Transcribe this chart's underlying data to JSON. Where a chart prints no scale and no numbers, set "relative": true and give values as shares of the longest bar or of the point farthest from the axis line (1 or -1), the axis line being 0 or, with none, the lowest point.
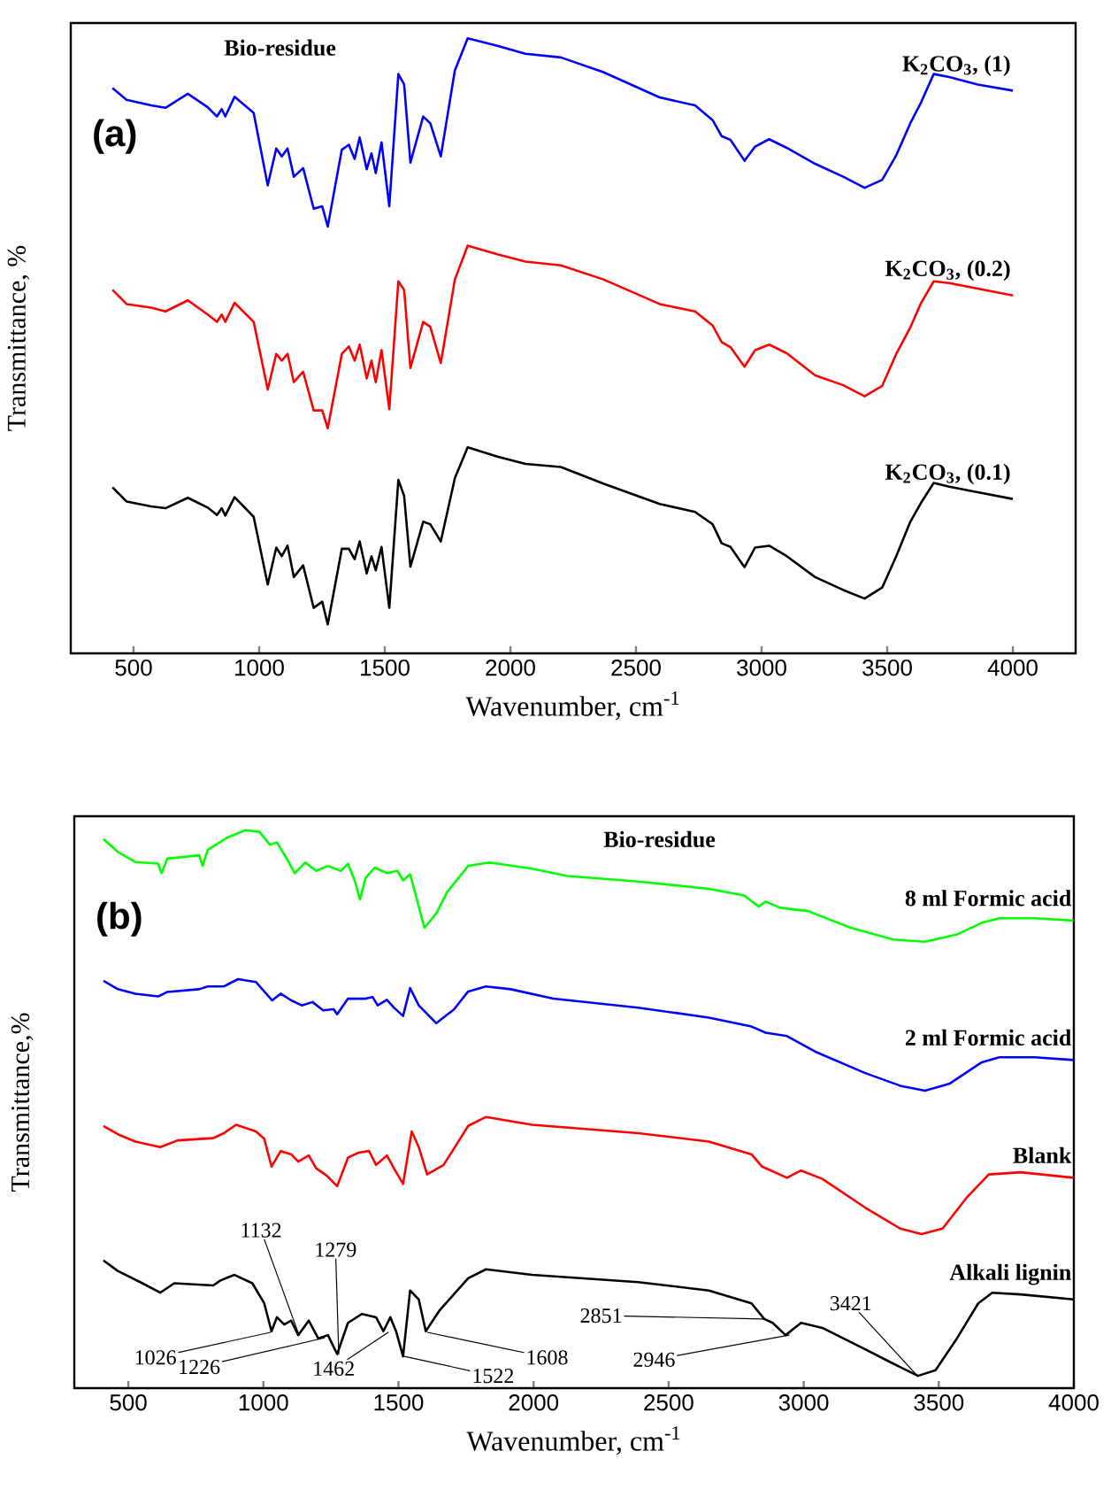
{
  "chart_data": [
    {
      "type": "line",
      "title": "(a)",
      "xlabel": "Wavenumber, cm$^{-1}$",
      "ylabel": "Transmittance, %",
      "relative": true,
      "tick_labels": "x",
      "xlim": [
        250,
        4250
      ],
      "xticks": [
        500,
        1000,
        1500,
        2000,
        2500,
        3000,
        3500,
        4000
      ],
      "annotations": [
        "Bio-residue"
      ],
      "series": [
        {
          "name": "K$_{2}$CO$_{3}$, (1)",
          "color": "#0000ff",
          "x": [
            416,
            472,
            570,
            627,
            716,
            795,
            832,
            851,
            865,
            902,
            978,
            1034,
            1068,
            1090,
            1113,
            1138,
            1175,
            1217,
            1251,
            1273,
            1329,
            1357,
            1380,
            1400,
            1428,
            1447,
            1464,
            1487,
            1518,
            1554,
            1577,
            1602,
            1653,
            1681,
            1723,
            1779,
            1830,
            1948,
            2060,
            2201,
            2370,
            2594,
            2735,
            2805,
            2841,
            2876,
            2932,
            2974,
            3030,
            3100,
            3213,
            3325,
            3410,
            3480,
            3536,
            3592,
            3635,
            3685,
            3747,
            3860,
            4000
          ],
          "values": [
            0.919,
            0.9,
            0.891,
            0.887,
            0.91,
            0.888,
            0.873,
            0.885,
            0.873,
            0.905,
            0.879,
            0.761,
            0.821,
            0.808,
            0.821,
            0.775,
            0.789,
            0.723,
            0.727,
            0.694,
            0.819,
            0.827,
            0.804,
            0.839,
            0.787,
            0.813,
            0.781,
            0.831,
            0.727,
            0.942,
            0.925,
            0.798,
            0.873,
            0.862,
            0.808,
            0.948,
            1.0,
            0.988,
            0.975,
            0.969,
            0.945,
            0.904,
            0.891,
            0.867,
            0.841,
            0.835,
            0.801,
            0.824,
            0.836,
            0.822,
            0.796,
            0.775,
            0.757,
            0.77,
            0.81,
            0.862,
            0.896,
            0.942,
            0.937,
            0.925,
            0.915
          ]
        },
        {
          "name": "K$_{2}$CO$_{3}$, (0.2)",
          "color": "#ff0000",
          "x": [
            416,
            472,
            570,
            627,
            716,
            795,
            832,
            851,
            865,
            902,
            978,
            1034,
            1068,
            1090,
            1113,
            1138,
            1175,
            1217,
            1251,
            1273,
            1329,
            1357,
            1380,
            1400,
            1428,
            1447,
            1464,
            1487,
            1518,
            1554,
            1577,
            1602,
            1653,
            1681,
            1723,
            1779,
            1830,
            1948,
            2060,
            2201,
            2370,
            2594,
            2735,
            2805,
            2841,
            2876,
            2932,
            2974,
            3030,
            3100,
            3213,
            3325,
            3410,
            3480,
            3536,
            3592,
            3635,
            3685,
            3747,
            3860,
            4000
          ],
          "values": [
            0.591,
            0.568,
            0.562,
            0.556,
            0.574,
            0.551,
            0.539,
            0.551,
            0.539,
            0.57,
            0.539,
            0.429,
            0.487,
            0.476,
            0.487,
            0.441,
            0.458,
            0.395,
            0.395,
            0.366,
            0.487,
            0.499,
            0.476,
            0.502,
            0.447,
            0.476,
            0.441,
            0.493,
            0.397,
            0.605,
            0.591,
            0.464,
            0.539,
            0.531,
            0.472,
            0.608,
            0.663,
            0.649,
            0.637,
            0.631,
            0.608,
            0.568,
            0.556,
            0.533,
            0.506,
            0.498,
            0.466,
            0.493,
            0.502,
            0.488,
            0.452,
            0.436,
            0.418,
            0.435,
            0.487,
            0.53,
            0.57,
            0.605,
            0.602,
            0.593,
            0.582
          ]
        },
        {
          "name": "K$_{2}$CO$_{3}$, (0.1)",
          "color": "#000000",
          "x": [
            416,
            472,
            570,
            627,
            716,
            795,
            832,
            851,
            865,
            902,
            978,
            1034,
            1068,
            1090,
            1113,
            1138,
            1175,
            1217,
            1251,
            1273,
            1329,
            1357,
            1380,
            1400,
            1428,
            1447,
            1464,
            1487,
            1518,
            1554,
            1577,
            1602,
            1653,
            1681,
            1723,
            1779,
            1830,
            1948,
            2060,
            2201,
            2370,
            2594,
            2735,
            2805,
            2841,
            2876,
            2932,
            2974,
            3030,
            3100,
            3213,
            3325,
            3410,
            3480,
            3536,
            3592,
            3635,
            3685,
            3747,
            3860,
            4000
          ],
          "values": [
            0.27,
            0.247,
            0.239,
            0.236,
            0.253,
            0.237,
            0.225,
            0.236,
            0.224,
            0.254,
            0.222,
            0.112,
            0.172,
            0.158,
            0.175,
            0.124,
            0.143,
            0.074,
            0.084,
            0.047,
            0.17,
            0.17,
            0.153,
            0.182,
            0.13,
            0.158,
            0.135,
            0.173,
            0.074,
            0.282,
            0.256,
            0.141,
            0.214,
            0.21,
            0.182,
            0.285,
            0.335,
            0.32,
            0.308,
            0.303,
            0.276,
            0.243,
            0.23,
            0.21,
            0.179,
            0.173,
            0.14,
            0.172,
            0.175,
            0.158,
            0.124,
            0.103,
            0.089,
            0.107,
            0.158,
            0.214,
            0.245,
            0.277,
            0.271,
            0.262,
            0.251
          ]
        }
      ]
    },
    {
      "type": "line",
      "title": "(b)",
      "xlabel": "Wavenumber, cm$^{-1}$",
      "ylabel": "Transmittance,%",
      "relative": true,
      "tick_labels": "x",
      "xlim": [
        300,
        4000
      ],
      "xticks": [
        500,
        1000,
        1500,
        2000,
        2500,
        3000,
        3500,
        4000
      ],
      "annotations": [
        "Bio-residue",
        {
          "text": "1026",
          "x": 1026,
          "y": 0.1
        },
        {
          "text": "1132",
          "x": 1132,
          "y": 0.095
        },
        {
          "text": "1279",
          "x": 1279,
          "y": 0.061
        },
        {
          "text": "1226",
          "x": 1226,
          "y": 0.09
        },
        {
          "text": "1462",
          "x": 1462,
          "y": 0.1
        },
        {
          "text": "1522",
          "x": 1522,
          "y": 0.057
        },
        {
          "text": "1608",
          "x": 1608,
          "y": 0.1
        },
        {
          "text": "2851",
          "x": 2851,
          "y": 0.124
        },
        {
          "text": "2946",
          "x": 2946,
          "y": 0.095
        },
        {
          "text": "3421",
          "x": 3421,
          "y": 0.022
        }
      ],
      "series": [
        {
          "name": "8 ml Formic acid",
          "color": "#00ff00",
          "x": [
            408,
            461,
            526,
            610,
            623,
            644,
            762,
            775,
            794,
            867,
            933,
            985,
            1024,
            1050,
            1090,
            1116,
            1155,
            1195,
            1239,
            1286,
            1313,
            1339,
            1357,
            1378,
            1412,
            1457,
            1496,
            1517,
            1543,
            1596,
            1640,
            1680,
            1758,
            1837,
            1994,
            2125,
            2387,
            2649,
            2780,
            2833,
            2859,
            2912,
            3016,
            3174,
            3331,
            3449,
            3567,
            3659,
            3724,
            3855,
            3999
          ],
          "values": [
            0.984,
            0.961,
            0.943,
            0.94,
            0.923,
            0.949,
            0.955,
            0.936,
            0.965,
            0.987,
            1.0,
            0.997,
            0.974,
            0.978,
            0.946,
            0.923,
            0.942,
            0.927,
            0.936,
            0.927,
            0.94,
            0.908,
            0.876,
            0.914,
            0.933,
            0.923,
            0.927,
            0.91,
            0.921,
            0.825,
            0.851,
            0.889,
            0.936,
            0.942,
            0.931,
            0.918,
            0.908,
            0.895,
            0.883,
            0.863,
            0.872,
            0.861,
            0.855,
            0.825,
            0.804,
            0.8,
            0.813,
            0.834,
            0.842,
            0.842,
            0.838
          ]
        },
        {
          "name": "2 ml Formic acid",
          "color": "#0000ff",
          "x": [
            408,
            461,
            526,
            610,
            644,
            762,
            794,
            854,
            906,
            972,
            1032,
            1064,
            1103,
            1142,
            1182,
            1221,
            1260,
            1273,
            1313,
            1378,
            1404,
            1423,
            1457,
            1483,
            1517,
            1543,
            1575,
            1640,
            1706,
            1758,
            1824,
            1915,
            2073,
            2387,
            2649,
            2807,
            2859,
            2938,
            3043,
            3226,
            3357,
            3449,
            3541,
            3659,
            3724,
            3855,
            3999
          ],
          "values": [
            0.73,
            0.715,
            0.707,
            0.702,
            0.71,
            0.715,
            0.72,
            0.72,
            0.733,
            0.728,
            0.695,
            0.707,
            0.695,
            0.686,
            0.692,
            0.677,
            0.679,
            0.67,
            0.698,
            0.698,
            0.701,
            0.686,
            0.696,
            0.682,
            0.667,
            0.717,
            0.686,
            0.654,
            0.679,
            0.711,
            0.72,
            0.715,
            0.698,
            0.682,
            0.664,
            0.648,
            0.637,
            0.631,
            0.603,
            0.565,
            0.542,
            0.533,
            0.546,
            0.584,
            0.593,
            0.593,
            0.588
          ]
        },
        {
          "name": "Blank",
          "color": "#ff0000",
          "x": [
            408,
            461,
            526,
            618,
            683,
            814,
            854,
            899,
            972,
            1003,
            1030,
            1064,
            1103,
            1129,
            1168,
            1195,
            1234,
            1273,
            1313,
            1352,
            1391,
            1417,
            1457,
            1483,
            1517,
            1549,
            1575,
            1606,
            1667,
            1758,
            1824,
            1994,
            2387,
            2649,
            2807,
            2846,
            2938,
            2990,
            3069,
            3226,
            3357,
            3436,
            3514,
            3606,
            3685,
            3803,
            3999
          ],
          "values": [
            0.47,
            0.455,
            0.442,
            0.432,
            0.444,
            0.448,
            0.457,
            0.472,
            0.46,
            0.447,
            0.397,
            0.425,
            0.419,
            0.406,
            0.417,
            0.394,
            0.381,
            0.362,
            0.413,
            0.422,
            0.425,
            0.4,
            0.417,
            0.394,
            0.366,
            0.46,
            0.432,
            0.383,
            0.4,
            0.47,
            0.486,
            0.472,
            0.457,
            0.442,
            0.419,
            0.397,
            0.377,
            0.39,
            0.375,
            0.324,
            0.286,
            0.276,
            0.286,
            0.343,
            0.383,
            0.387,
            0.377
          ]
        },
        {
          "name": "Alkali lignin",
          "color": "#000000",
          "x": [
            408,
            461,
            552,
            618,
            670,
            814,
            841,
            893,
            959,
            1003,
            1030,
            1050,
            1077,
            1103,
            1129,
            1168,
            1203,
            1239,
            1273,
            1313,
            1365,
            1417,
            1444,
            1470,
            1491,
            1517,
            1543,
            1575,
            1601,
            1653,
            1758,
            1824,
            1994,
            2387,
            2649,
            2807,
            2854,
            2885,
            2933,
            2990,
            3069,
            3226,
            3331,
            3423,
            3488,
            3567,
            3646,
            3698,
            3803,
            3999
          ],
          "values": [
            0.229,
            0.21,
            0.188,
            0.171,
            0.188,
            0.184,
            0.193,
            0.203,
            0.188,
            0.152,
            0.102,
            0.127,
            0.114,
            0.121,
            0.095,
            0.121,
            0.089,
            0.095,
            0.061,
            0.117,
            0.133,
            0.127,
            0.102,
            0.127,
            0.102,
            0.057,
            0.175,
            0.159,
            0.102,
            0.14,
            0.197,
            0.213,
            0.203,
            0.19,
            0.175,
            0.152,
            0.124,
            0.117,
            0.095,
            0.117,
            0.108,
            0.07,
            0.044,
            0.022,
            0.032,
            0.089,
            0.152,
            0.171,
            0.168,
            0.159
          ]
        }
      ]
    }
  ]
}
